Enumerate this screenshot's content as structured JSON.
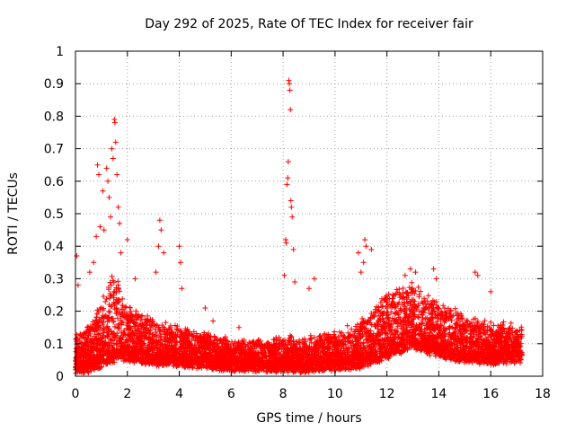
{
  "chart_data": {
    "type": "scatter",
    "title": "Day 292 of 2025, Rate Of TEC Index for receiver fair",
    "xlabel": "GPS time / hours",
    "ylabel": "ROTI / TECUs",
    "xlim": [
      0,
      18
    ],
    "ylim": [
      0,
      1
    ],
    "x_ticks": [
      "0",
      "2",
      "4",
      "6",
      "8",
      "10",
      "12",
      "14",
      "16",
      "18"
    ],
    "y_ticks": [
      "0",
      "0.1",
      "0.2",
      "0.3",
      "0.4",
      "0.5",
      "0.6",
      "0.7",
      "0.8",
      "0.9",
      "1"
    ],
    "grid": true,
    "marker": "+",
    "color": "#ff0000",
    "envelope": {
      "x": [
        0,
        0.5,
        1.0,
        1.4,
        1.6,
        2.0,
        3.0,
        4.0,
        5.0,
        6.0,
        7.0,
        8.0,
        9.0,
        10.0,
        11.0,
        12.0,
        13.0,
        14.0,
        15.0,
        16.0,
        17.2
      ],
      "base": [
        0.05,
        0.06,
        0.09,
        0.12,
        0.13,
        0.1,
        0.08,
        0.07,
        0.06,
        0.05,
        0.05,
        0.05,
        0.05,
        0.06,
        0.07,
        0.12,
        0.15,
        0.11,
        0.09,
        0.08,
        0.08
      ],
      "spread": [
        0.08,
        0.1,
        0.15,
        0.2,
        0.2,
        0.12,
        0.1,
        0.08,
        0.07,
        0.06,
        0.06,
        0.07,
        0.07,
        0.08,
        0.1,
        0.15,
        0.15,
        0.12,
        0.1,
        0.09,
        0.07
      ]
    },
    "outliers": [
      {
        "x": 0.05,
        "y": 0.37
      },
      {
        "x": 0.1,
        "y": 0.28
      },
      {
        "x": 0.55,
        "y": 0.32
      },
      {
        "x": 0.7,
        "y": 0.35
      },
      {
        "x": 0.8,
        "y": 0.43
      },
      {
        "x": 0.85,
        "y": 0.65
      },
      {
        "x": 0.9,
        "y": 0.62
      },
      {
        "x": 0.95,
        "y": 0.46
      },
      {
        "x": 1.05,
        "y": 0.57
      },
      {
        "x": 1.1,
        "y": 0.45
      },
      {
        "x": 1.2,
        "y": 0.64
      },
      {
        "x": 1.25,
        "y": 0.6
      },
      {
        "x": 1.3,
        "y": 0.55
      },
      {
        "x": 1.35,
        "y": 0.49
      },
      {
        "x": 1.4,
        "y": 0.7
      },
      {
        "x": 1.45,
        "y": 0.67
      },
      {
        "x": 1.5,
        "y": 0.79
      },
      {
        "x": 1.52,
        "y": 0.78
      },
      {
        "x": 1.55,
        "y": 0.72
      },
      {
        "x": 1.6,
        "y": 0.62
      },
      {
        "x": 1.65,
        "y": 0.52
      },
      {
        "x": 1.7,
        "y": 0.47
      },
      {
        "x": 1.75,
        "y": 0.38
      },
      {
        "x": 2.0,
        "y": 0.42
      },
      {
        "x": 2.3,
        "y": 0.3
      },
      {
        "x": 3.1,
        "y": 0.32
      },
      {
        "x": 3.2,
        "y": 0.4
      },
      {
        "x": 3.25,
        "y": 0.48
      },
      {
        "x": 3.3,
        "y": 0.45
      },
      {
        "x": 3.4,
        "y": 0.38
      },
      {
        "x": 4.0,
        "y": 0.4
      },
      {
        "x": 4.05,
        "y": 0.35
      },
      {
        "x": 4.1,
        "y": 0.27
      },
      {
        "x": 5.0,
        "y": 0.21
      },
      {
        "x": 5.3,
        "y": 0.17
      },
      {
        "x": 6.3,
        "y": 0.15
      },
      {
        "x": 8.05,
        "y": 0.31
      },
      {
        "x": 8.1,
        "y": 0.42
      },
      {
        "x": 8.12,
        "y": 0.41
      },
      {
        "x": 8.15,
        "y": 0.59
      },
      {
        "x": 8.18,
        "y": 0.61
      },
      {
        "x": 8.2,
        "y": 0.66
      },
      {
        "x": 8.22,
        "y": 0.91
      },
      {
        "x": 8.24,
        "y": 0.9
      },
      {
        "x": 8.26,
        "y": 0.88
      },
      {
        "x": 8.28,
        "y": 0.82
      },
      {
        "x": 8.3,
        "y": 0.54
      },
      {
        "x": 8.32,
        "y": 0.52
      },
      {
        "x": 8.35,
        "y": 0.49
      },
      {
        "x": 8.4,
        "y": 0.39
      },
      {
        "x": 8.45,
        "y": 0.29
      },
      {
        "x": 9.0,
        "y": 0.27
      },
      {
        "x": 9.2,
        "y": 0.3
      },
      {
        "x": 10.9,
        "y": 0.38
      },
      {
        "x": 11.0,
        "y": 0.32
      },
      {
        "x": 11.1,
        "y": 0.35
      },
      {
        "x": 11.15,
        "y": 0.42
      },
      {
        "x": 11.2,
        "y": 0.4
      },
      {
        "x": 11.4,
        "y": 0.39
      },
      {
        "x": 12.7,
        "y": 0.31
      },
      {
        "x": 12.9,
        "y": 0.33
      },
      {
        "x": 13.1,
        "y": 0.32
      },
      {
        "x": 13.8,
        "y": 0.33
      },
      {
        "x": 13.9,
        "y": 0.3
      },
      {
        "x": 15.4,
        "y": 0.32
      },
      {
        "x": 15.5,
        "y": 0.31
      },
      {
        "x": 16.0,
        "y": 0.26
      }
    ]
  }
}
